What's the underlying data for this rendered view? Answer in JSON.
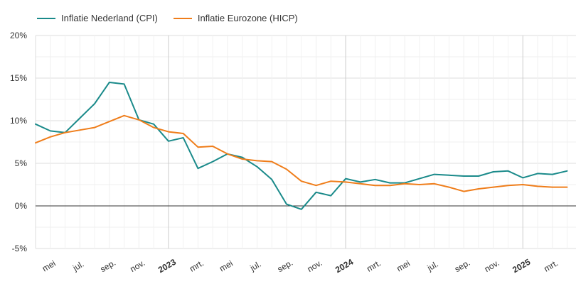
{
  "chart_data": {
    "type": "line",
    "title": "",
    "xlabel": "",
    "ylabel": "",
    "ylim": [
      -5,
      20
    ],
    "y_ticks": [
      "-5%",
      "0%",
      "5%",
      "10%",
      "15%",
      "20%"
    ],
    "y_tick_values": [
      -5,
      0,
      5,
      10,
      15,
      20
    ],
    "x_tick_labels": [
      {
        "month_index": 1,
        "label": "mei",
        "bold": false
      },
      {
        "month_index": 3,
        "label": "jul.",
        "bold": false
      },
      {
        "month_index": 5,
        "label": "sep.",
        "bold": false
      },
      {
        "month_index": 7,
        "label": "nov.",
        "bold": false
      },
      {
        "month_index": 9,
        "label": "2023",
        "bold": true
      },
      {
        "month_index": 11,
        "label": "mrt.",
        "bold": false
      },
      {
        "month_index": 13,
        "label": "mei",
        "bold": false
      },
      {
        "month_index": 15,
        "label": "jul.",
        "bold": false
      },
      {
        "month_index": 17,
        "label": "sep.",
        "bold": false
      },
      {
        "month_index": 19,
        "label": "nov.",
        "bold": false
      },
      {
        "month_index": 21,
        "label": "2024",
        "bold": true
      },
      {
        "month_index": 23,
        "label": "mrt.",
        "bold": false
      },
      {
        "month_index": 25,
        "label": "mei",
        "bold": false
      },
      {
        "month_index": 27,
        "label": "jul.",
        "bold": false
      },
      {
        "month_index": 29,
        "label": "sep.",
        "bold": false
      },
      {
        "month_index": 31,
        "label": "nov.",
        "bold": false
      },
      {
        "month_index": 33,
        "label": "2025",
        "bold": true
      },
      {
        "month_index": 35,
        "label": "mrt.",
        "bold": false
      }
    ],
    "x_range": [
      0,
      36.6
    ],
    "x_start_month": "2022-04",
    "grid": true,
    "legend_position": "top-left",
    "series": [
      {
        "name": "Inflatie Nederland (CPI)",
        "color": "#1a8a8a",
        "values": [
          9.6,
          8.8,
          8.6,
          10.3,
          12.0,
          14.5,
          14.3,
          10.1,
          9.6,
          7.6,
          8.0,
          4.4,
          5.2,
          6.1,
          5.7,
          4.6,
          3.1,
          0.2,
          -0.4,
          1.6,
          1.2,
          3.2,
          2.8,
          3.1,
          2.7,
          2.7,
          3.2,
          3.7,
          3.6,
          3.5,
          3.5,
          4.0,
          4.1,
          3.3,
          3.8,
          3.7,
          4.1
        ]
      },
      {
        "name": "Inflatie Eurozone (HICP)",
        "color": "#ef7d1a",
        "values": [
          7.4,
          8.1,
          8.6,
          8.9,
          9.2,
          9.9,
          10.6,
          10.1,
          9.2,
          8.7,
          8.5,
          6.9,
          7.0,
          6.1,
          5.5,
          5.3,
          5.2,
          4.3,
          2.9,
          2.4,
          2.9,
          2.8,
          2.6,
          2.4,
          2.4,
          2.6,
          2.5,
          2.6,
          2.2,
          1.7,
          2.0,
          2.2,
          2.4,
          2.5,
          2.3,
          2.2,
          2.2
        ]
      }
    ]
  }
}
